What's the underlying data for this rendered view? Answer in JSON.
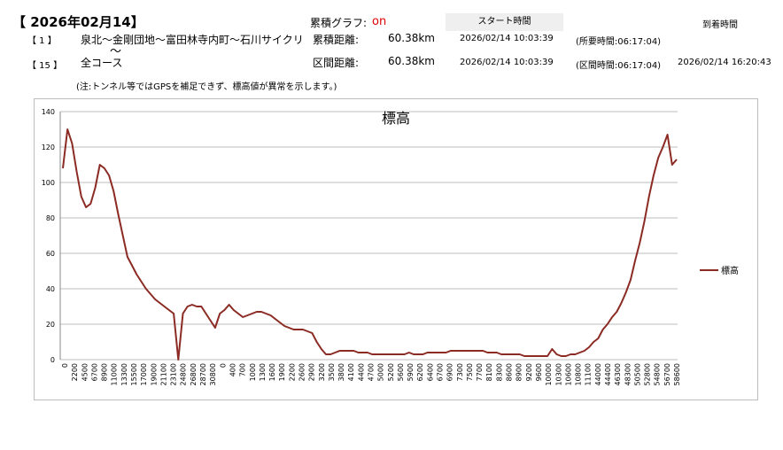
{
  "header": {
    "date_title": "【 2026年02月14】",
    "graph_label": "累積グラフ:",
    "graph_state": "on",
    "start_time_header": "スタート時間",
    "arrival_header": "到着時間",
    "row1": {
      "index": "【 1 】",
      "course": "泉北～金剛団地～富田林寺内町～石川サイクリ",
      "dist_label": "累積距離:",
      "dist_value": "60.38km",
      "start": "2026/02/14 10:03:39",
      "time_note": "(所要時間:06:17:04)"
    },
    "tilde": "〜",
    "row2": {
      "index": "【 15 】",
      "course": "全コース",
      "dist_label": "区間距離:",
      "dist_value": "60.38km",
      "start": "2026/02/14 10:03:39",
      "time_note": "(区間時間:06:17:04)",
      "arrival": "2026/02/14 16:20:43"
    },
    "note": "(注:トンネル等ではGPSを補足できず、標高値が異常を示します。)"
  },
  "chart_data": {
    "type": "line",
    "title": "標高",
    "legend": "標高",
    "legend_position": "right",
    "grid": true,
    "ylim": [
      0,
      140
    ],
    "yticks": [
      0,
      20,
      40,
      60,
      80,
      100,
      120,
      140
    ],
    "xtick_labels": [
      "0",
      "2200",
      "4500",
      "6700",
      "8900",
      "11000",
      "13300",
      "15500",
      "17000",
      "19000",
      "21100",
      "23100",
      "24800",
      "26800",
      "28700",
      "30800",
      "0",
      "400",
      "700",
      "1000",
      "1300",
      "1600",
      "1900",
      "2200",
      "2600",
      "2900",
      "3200",
      "3500",
      "3800",
      "4100",
      "4400",
      "4700",
      "5000",
      "5200",
      "5600",
      "5900",
      "6200",
      "6400",
      "6700",
      "6900",
      "7300",
      "7500",
      "7700",
      "8100",
      "8300",
      "8600",
      "8900",
      "9200",
      "9600",
      "10000",
      "10300",
      "10600",
      "10800",
      "11100",
      "44000",
      "44400",
      "46300",
      "48300",
      "50500",
      "52800",
      "54800",
      "56700",
      "58600"
    ],
    "series": [
      {
        "values": [
          108,
          130,
          122,
          106,
          92,
          86,
          88,
          97,
          110,
          108,
          104,
          95,
          82,
          70,
          58,
          53,
          48,
          44,
          40,
          37,
          34,
          32,
          30,
          28,
          26,
          0,
          26,
          30,
          31,
          30,
          30,
          26,
          22,
          18,
          26,
          28,
          31,
          28,
          26,
          24,
          25,
          26,
          27,
          27,
          26,
          25,
          23,
          21,
          19,
          18,
          17,
          17,
          17,
          16,
          15,
          10,
          6,
          3,
          3,
          4,
          5,
          5,
          5,
          5,
          4,
          4,
          4,
          3,
          3,
          3,
          3,
          3,
          3,
          3,
          3,
          4,
          3,
          3,
          3,
          4,
          4,
          4,
          4,
          4,
          5,
          5,
          5,
          5,
          5,
          5,
          5,
          5,
          4,
          4,
          4,
          3,
          3,
          3,
          3,
          3,
          2,
          2,
          2,
          2,
          2,
          2,
          6,
          3,
          2,
          2,
          3,
          3,
          4,
          5,
          7,
          10,
          12,
          17,
          20,
          24,
          27,
          32,
          38,
          45,
          56,
          66,
          78,
          92,
          104,
          114,
          120,
          127,
          110,
          113
        ],
        "color": "#8b2b24"
      }
    ]
  }
}
